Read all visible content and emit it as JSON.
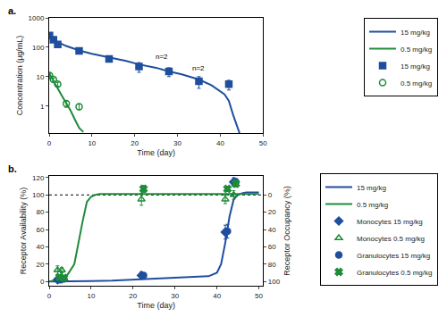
{
  "chart_data": [
    {
      "type": "scatter",
      "title": "a.",
      "x_label": "Time (day)",
      "y_label": "Concentration (μg/mL)",
      "log": "y",
      "xlim": [
        0,
        50
      ],
      "xticks": [
        0,
        10,
        20,
        30,
        40,
        50
      ],
      "ylim": [
        0.12,
        1000
      ],
      "yticks": [
        1,
        10,
        100,
        1000
      ],
      "grid": false,
      "legend": "upper right",
      "annotations": [
        {
          "text": "n=2",
          "x": 24.5,
          "y": 30
        },
        {
          "text": "n=2",
          "x": 33.0,
          "y": 12
        }
      ],
      "series": [
        {
          "name": "15 mg/kg",
          "type": "line",
          "line_style": "solid",
          "color": "#1F4E9E",
          "x": [
            0,
            0.5,
            1,
            2,
            4,
            7,
            10,
            14,
            18,
            21,
            25,
            28,
            31,
            35,
            38,
            41,
            42,
            43,
            44,
            44.5
          ],
          "values": [
            280,
            230,
            190,
            150,
            110,
            78,
            60,
            45,
            34,
            26,
            20,
            15,
            12,
            8,
            5,
            2.5,
            1.5,
            0.5,
            0.2,
            0.12
          ]
        },
        {
          "name": "0.5 mg/kg",
          "type": "line",
          "line_style": "solid",
          "color": "#1E8C3A",
          "x": [
            0,
            0.3,
            0.6,
            1,
            1.5,
            2,
            3,
            4,
            5,
            6,
            7,
            8
          ],
          "values": [
            13,
            11,
            9,
            7.5,
            5.5,
            4.0,
            2.2,
            1.3,
            0.7,
            0.35,
            0.18,
            0.13
          ]
        },
        {
          "name": "15 mg/kg",
          "type": "scatter",
          "marker": "square",
          "color": "#1F4E9E",
          "x": [
            0.08,
            1,
            2,
            7,
            14,
            21,
            28,
            35,
            42
          ],
          "values": [
            250,
            180,
            125,
            75,
            40,
            22,
            15,
            7,
            5.5
          ],
          "errors": [
            40,
            20,
            15,
            10,
            8,
            8,
            5,
            3,
            2
          ]
        },
        {
          "name": "0.5 mg/kg",
          "type": "scatter",
          "marker": "circle-open",
          "color": "#1E8C3A",
          "x": [
            0.08,
            1,
            2,
            4,
            7
          ],
          "values": [
            11,
            8,
            5.5,
            1.2,
            0.95
          ],
          "errors": [
            2,
            1,
            0.8,
            0.3,
            0.2
          ]
        }
      ]
    },
    {
      "type": "scatter",
      "title": "b.",
      "x_label": "Time (day)",
      "y_label": "Receptor Availability (%)",
      "y2_label": "Receptor Occupancy (%)",
      "xlim": [
        0,
        51
      ],
      "xticks": [
        0,
        10,
        20,
        30,
        40,
        50
      ],
      "ylim": [
        -5,
        122
      ],
      "yticks": [
        0,
        20,
        40,
        60,
        80,
        100,
        120
      ],
      "y2lim": [
        105,
        -22
      ],
      "y2ticks": [
        0,
        20,
        40,
        60,
        80,
        100
      ],
      "grid": false,
      "legend": "lower right",
      "hlines": [
        {
          "value": 100,
          "line_style": "dotted",
          "color": "black"
        }
      ],
      "series": [
        {
          "name": "15 mg/kg",
          "type": "line",
          "line_style": "solid",
          "color": "#1F4E9E",
          "x": [
            0,
            5,
            10,
            15,
            20,
            25,
            30,
            35,
            38,
            40,
            41,
            42,
            43,
            44,
            45,
            46,
            47,
            48,
            50
          ],
          "values": [
            0,
            0,
            0.5,
            1,
            2,
            3,
            4,
            5,
            6,
            10,
            20,
            45,
            75,
            95,
            100,
            102,
            103,
            103,
            103
          ]
        },
        {
          "name": "0.5 mg/kg",
          "type": "line",
          "line_style": "solid",
          "color": "#1E8C3A",
          "x": [
            0,
            2,
            4,
            6,
            8,
            9,
            10,
            11,
            12,
            15,
            20,
            25,
            30,
            35,
            40,
            45,
            50
          ],
          "values": [
            0,
            2,
            5,
            20,
            70,
            92,
            98,
            100,
            101,
            101,
            101,
            101,
            101,
            101,
            101,
            101,
            101
          ]
        },
        {
          "name": "Monocytes 15 mg/kg",
          "type": "scatter",
          "marker": "diamond",
          "color": "#1F4E9E",
          "x": [
            2,
            3,
            22,
            42,
            44
          ],
          "values": [
            2,
            3,
            7,
            57,
            115
          ],
          "errors": [
            2,
            2,
            4,
            8,
            5
          ]
        },
        {
          "name": "Monocytes 0.5 mg/kg",
          "type": "scatter",
          "marker": "triangle-up-open",
          "color": "#1E8C3A",
          "x": [
            2,
            3,
            22,
            42,
            44
          ],
          "values": [
            13,
            13,
            95,
            95,
            100
          ],
          "errors": [
            5,
            3,
            7,
            5,
            5
          ]
        },
        {
          "name": "Granulocytes 15 mg/kg",
          "type": "scatter",
          "marker": "circle",
          "color": "#1F4E9E",
          "x": [
            2.5,
            3.5,
            22.5,
            42.5,
            44.5
          ],
          "values": [
            2,
            3,
            7,
            58,
            115
          ],
          "errors": [
            2,
            2,
            3,
            8,
            4
          ]
        },
        {
          "name": "Granulocytes 0.5 mg/kg",
          "type": "scatter",
          "marker": "x",
          "color": "#1E8C3A",
          "x": [
            2.5,
            3.5,
            22.5,
            42.5,
            44.5
          ],
          "values": [
            5,
            4,
            107,
            107,
            113
          ],
          "errors": [
            2,
            2,
            4,
            3,
            4
          ]
        }
      ]
    }
  ]
}
